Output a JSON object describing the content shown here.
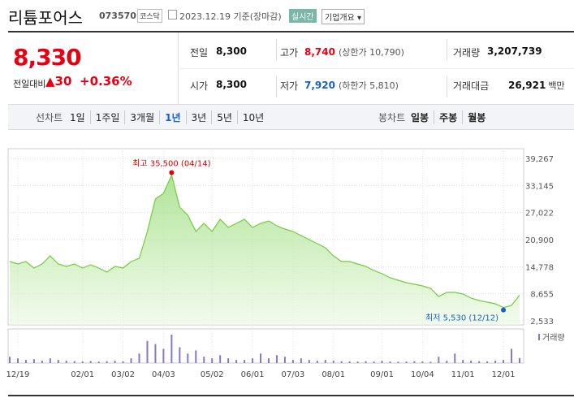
{
  "header": {
    "name": "리튬포어스",
    "code": "073570",
    "market": "코스닥",
    "date": "2023.12.19 기준(장마감)",
    "realtime": "실시간",
    "company": "기업개요"
  },
  "price": {
    "current": "8,330",
    "change_label": "전일대비",
    "change": "30",
    "change_rate": "+0.36%"
  },
  "stats": [
    [
      {
        "label": "전일",
        "value": "8,300"
      },
      {
        "label": "고가",
        "value": "8,740",
        "note": "(상한가 10,790)"
      },
      {
        "label": "거래량",
        "value": "3,207,739"
      }
    ],
    [
      {
        "label": "시가",
        "value": "8,300"
      },
      {
        "label": "저가",
        "value": "7,920",
        "note": "(하한가 5,810)"
      },
      {
        "label": "거래대금",
        "value": "26,921",
        "unit": "백만"
      }
    ]
  ],
  "tabs": {
    "line_label": "선차트",
    "line_periods": [
      "1일",
      "1주일",
      "3개월",
      "1년",
      "3년",
      "5년",
      "10년"
    ],
    "selected": "1년",
    "candle_label": "봉차트",
    "candle_periods": [
      "일봉",
      "주봉",
      "월봉"
    ]
  },
  "chart_data": {
    "type": "line",
    "color": "#72cc3c",
    "categories": [
      null,
      "12/19",
      null,
      null,
      null,
      null,
      null,
      null,
      null,
      "02/01",
      null,
      null,
      null,
      null,
      "03/02",
      null,
      null,
      null,
      null,
      "04/03",
      null,
      null,
      null,
      null,
      null,
      "05/02",
      null,
      null,
      null,
      null,
      "06/01",
      null,
      null,
      null,
      null,
      "07/03",
      null,
      null,
      null,
      null,
      "08/01",
      null,
      null,
      null,
      null,
      null,
      "09/01",
      null,
      null,
      null,
      null,
      "10/04",
      null,
      null,
      null,
      null,
      "11/01",
      null,
      null,
      null,
      null,
      "12/01",
      null,
      null
    ],
    "values": [
      15941,
      15390,
      15941,
      14472,
      15390,
      17227,
      15390,
      14839,
      15390,
      14472,
      15206,
      14472,
      13553,
      14839,
      14472,
      15941,
      16676,
      22737,
      30084,
      31369,
      35500,
      28247,
      26410,
      22737,
      24573,
      22737,
      25492,
      23655,
      24573,
      25492,
      23655,
      24573,
      25124,
      24023,
      23288,
      22737,
      21818,
      20900,
      19981,
      19063,
      17227,
      15941,
      15941,
      15390,
      14839,
      13921,
      13186,
      12268,
      11717,
      11165,
      10798,
      10431,
      9880,
      8043,
      8961,
      8961,
      8594,
      7676,
      7125,
      6757,
      6390,
      5530,
      6023,
      8330
    ],
    "ylim": [
      2533,
      39267
    ],
    "yticks": [
      {
        "value": 2533,
        "label": "2,533"
      },
      {
        "value": 8655,
        "label": "8,655"
      },
      {
        "value": 14778,
        "label": "14,778"
      },
      {
        "value": 20900,
        "label": "20,900"
      },
      {
        "value": 27022,
        "label": "27,022"
      },
      {
        "value": 33145,
        "label": "33,145"
      },
      {
        "value": 39267,
        "label": "39,267"
      }
    ],
    "grid": true,
    "annotations": [
      {
        "text": "최고 35,500 (04/14)",
        "value": 35500,
        "color": "#e00000"
      },
      {
        "text": "최저 5,530 (12/12)",
        "value": 5530,
        "color": "#1560c8"
      }
    ],
    "volume": {
      "name": "거래량",
      "color": "#8a79b8",
      "ylim": [
        0,
        20000000
      ],
      "values": [
        4000000,
        3000000,
        2000000,
        2500000,
        1500000,
        3000000,
        2000000,
        1500000,
        1200000,
        1000000,
        1300000,
        1000000,
        1200000,
        1500000,
        1100000,
        3000000,
        6000000,
        14000000,
        12000000,
        9000000,
        18000000,
        10000000,
        6000000,
        8000000,
        4000000,
        3000000,
        5000000,
        3000000,
        2000000,
        2000000,
        3000000,
        6000000,
        3000000,
        5000000,
        4000000,
        2000000,
        3000000,
        2000000,
        1500000,
        2000000,
        1500000,
        1200000,
        1100000,
        1000000,
        1200000,
        1000000,
        1500000,
        1000000,
        900000,
        1000000,
        1200000,
        1000000,
        800000,
        4000000,
        1500000,
        6000000,
        2000000,
        1500000,
        1200000,
        1100000,
        1500000,
        2000000,
        9000000,
        3207739
      ]
    }
  }
}
